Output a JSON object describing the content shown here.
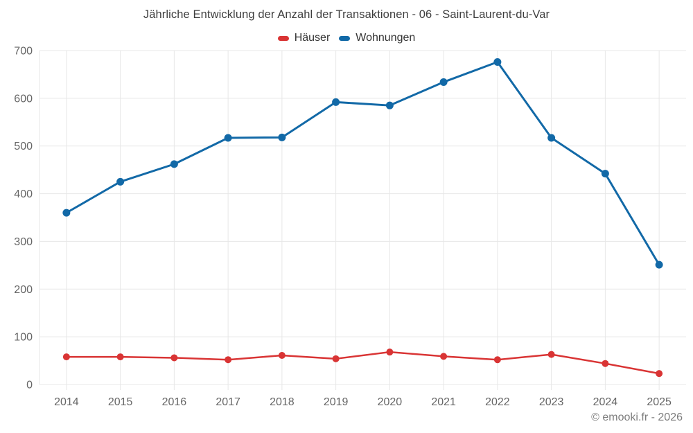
{
  "title": "Jährliche Entwicklung der Anzahl der Transaktionen - 06 - Saint-Laurent-du-Var",
  "footer": "© emooki.fr - 2026",
  "legend": [
    {
      "label": "Häuser",
      "color": "#d93434"
    },
    {
      "label": "Wohnungen",
      "color": "#1269a7"
    }
  ],
  "colors": {
    "grid": "#e7e7e7",
    "tick_label": "#666666",
    "title_text": "#3e3e3e",
    "footer_text": "#7d7d7d"
  },
  "chart_data": {
    "type": "line",
    "title": "Jährliche Entwicklung der Anzahl der Transaktionen - 06 - Saint-Laurent-du-Var",
    "categories": [
      "2014",
      "2015",
      "2016",
      "2017",
      "2018",
      "2019",
      "2020",
      "2021",
      "2022",
      "2023",
      "2024",
      "2025"
    ],
    "series": [
      {
        "name": "Häuser",
        "color": "#d93434",
        "line_width": 2.5,
        "marker_radius": 5,
        "values": [
          58,
          58,
          56,
          52,
          61,
          54,
          68,
          59,
          52,
          63,
          44,
          23
        ]
      },
      {
        "name": "Wohnungen",
        "color": "#1269a7",
        "line_width": 3,
        "marker_radius": 5.5,
        "values": [
          360,
          425,
          462,
          517,
          518,
          592,
          585,
          634,
          676,
          517,
          442,
          251
        ]
      }
    ],
    "xlabel": "",
    "ylabel": "",
    "ylim": [
      0,
      700
    ],
    "y_ticks": [
      0,
      100,
      200,
      300,
      400,
      500,
      600,
      700
    ],
    "grid": true,
    "legend_position": "top"
  }
}
